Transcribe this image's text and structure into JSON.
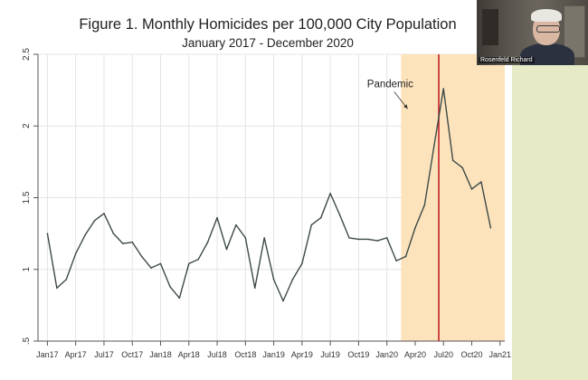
{
  "meeting": {
    "participant_name": "Rosenfeld Richard"
  },
  "colors": {
    "pandemic_shade": "#fde3bc",
    "marker_line": "#c41f2c",
    "series_line": "#3d4a47",
    "grid": "#e4e4e4"
  },
  "chart_data": {
    "type": "line",
    "title": "Figure 1. Monthly Homicides per 100,000 City Population",
    "subtitle": "January 2017 - December 2020",
    "xlabel": "",
    "ylabel": "",
    "ylim": [
      0.5,
      2.5
    ],
    "yticks": [
      0.5,
      1,
      1.5,
      2,
      2.5
    ],
    "ytick_labels": [
      ".5",
      "1",
      "1.5",
      "2",
      "2.5"
    ],
    "xticks": [
      0,
      3,
      6,
      9,
      12,
      15,
      18,
      21,
      24,
      27,
      30,
      33,
      36,
      39,
      42,
      45,
      48
    ],
    "xtick_labels": [
      "Jan17",
      "Apr17",
      "Jul17",
      "Oct17",
      "Jan18",
      "Apr18",
      "Jul18",
      "Oct18",
      "Jan19",
      "Apr19",
      "Jul19",
      "Oct19",
      "Jan20",
      "Apr20",
      "Jul20",
      "Oct20",
      "Jan21"
    ],
    "xlim": [
      -1,
      48.5
    ],
    "shaded_region": [
      37.5,
      48.5
    ],
    "vertical_line_x": 41.5,
    "annotation": {
      "text": "Pandemic",
      "x": 33.9,
      "y": 2.27,
      "arrow_to_x": 38.2,
      "arrow_to_y": 2.12
    },
    "series": [
      {
        "name": "Monthly homicides per 100,000",
        "values": [
          1.25,
          0.87,
          0.93,
          1.11,
          1.24,
          1.34,
          1.39,
          1.25,
          1.18,
          1.19,
          1.09,
          1.01,
          1.04,
          0.88,
          0.8,
          1.04,
          1.07,
          1.19,
          1.36,
          1.14,
          1.31,
          1.22,
          0.87,
          1.22,
          0.93,
          0.78,
          0.93,
          1.04,
          1.31,
          1.36,
          1.53,
          1.38,
          1.22,
          1.21,
          1.21,
          1.2,
          1.22,
          1.06,
          1.09,
          1.29,
          1.45,
          1.86,
          2.26,
          1.76,
          1.71,
          1.56,
          1.61,
          1.29
        ]
      }
    ]
  }
}
